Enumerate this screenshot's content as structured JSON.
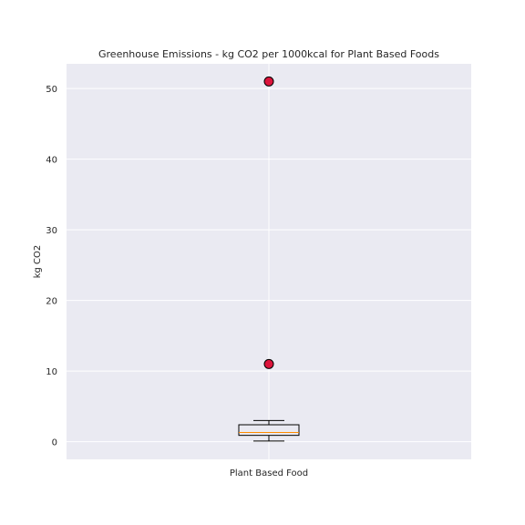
{
  "chart_data": {
    "type": "box",
    "title": "Greenhouse Emissions - kg CO2 per 1000kcal for Plant Based Foods",
    "xlabel": "",
    "ylabel": "kg CO2",
    "categories": [
      "Plant Based Food"
    ],
    "ylim": [
      -2.5,
      53.5
    ],
    "yticks": [
      0,
      10,
      20,
      30,
      40,
      50
    ],
    "grid": true,
    "boxes": [
      {
        "name": "Plant Based Food",
        "whisker_low": 0.1,
        "q1": 0.9,
        "median": 1.3,
        "q3": 2.4,
        "whisker_high": 3.0,
        "outliers": [
          11.0,
          51.0
        ]
      }
    ],
    "colors": {
      "background": "#eaeaf2",
      "grid": "#ffffff",
      "box_edge": "#000000",
      "median": "#ff8c00",
      "outlier_fill": "#dc143c",
      "outlier_edge": "#000000"
    }
  }
}
